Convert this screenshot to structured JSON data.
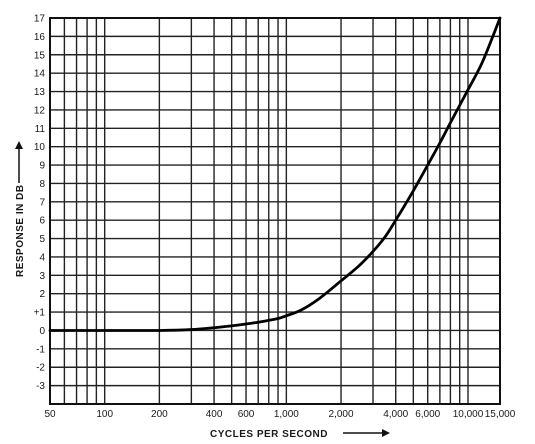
{
  "chart_data": {
    "type": "line",
    "title": "",
    "xlabel": "CYCLES PER SECOND",
    "ylabel": "RESPONSE IN DB",
    "x_scale": "log",
    "xlim": [
      50,
      15000
    ],
    "ylim": [
      -4,
      17
    ],
    "grid": true,
    "x_tick_labels": [
      "50",
      "100",
      "200",
      "400",
      "600",
      "1,000",
      "2,000",
      "4,000",
      "6,000",
      "10,000",
      "15,000"
    ],
    "x_tick_values": [
      50,
      100,
      200,
      400,
      600,
      1000,
      2000,
      4000,
      6000,
      10000,
      15000
    ],
    "x_grid_values": [
      50,
      60,
      70,
      80,
      90,
      100,
      200,
      300,
      400,
      500,
      600,
      700,
      800,
      900,
      1000,
      2000,
      3000,
      4000,
      5000,
      6000,
      7000,
      8000,
      9000,
      10000,
      15000
    ],
    "y_tick_labels": [
      "-3",
      "-2",
      "-1",
      "0",
      "+1",
      "2",
      "3",
      "4",
      "5",
      "6",
      "7",
      "8",
      "9",
      "10",
      "11",
      "12",
      "13",
      "14",
      "15",
      "16",
      "17"
    ],
    "y_tick_values": [
      -3,
      -2,
      -1,
      0,
      1,
      2,
      3,
      4,
      5,
      6,
      7,
      8,
      9,
      10,
      11,
      12,
      13,
      14,
      15,
      16,
      17
    ],
    "series": [
      {
        "x": [
          50,
          100,
          200,
          300,
          400,
          500,
          600,
          700,
          800,
          900,
          1000,
          1200,
          1500,
          2000,
          2500,
          3000,
          3500,
          4000,
          5000,
          6000,
          7000,
          8000,
          10000,
          12000,
          15000
        ],
        "y": [
          0,
          0,
          0,
          0.05,
          0.15,
          0.25,
          0.35,
          0.45,
          0.55,
          0.65,
          0.8,
          1.1,
          1.7,
          2.7,
          3.5,
          4.3,
          5.1,
          6.0,
          7.6,
          9.0,
          10.2,
          11.3,
          13.1,
          14.6,
          17.0
        ]
      }
    ],
    "colors": {
      "curve": "#000000",
      "grid": "#222222",
      "background": "#ffffff"
    }
  }
}
